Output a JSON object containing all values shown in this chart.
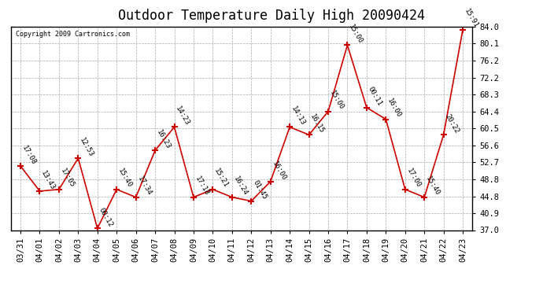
{
  "title": "Outdoor Temperature Daily High 20090424",
  "copyright": "Copyright 2009 Cartronics.com",
  "x_labels": [
    "03/31",
    "04/01",
    "04/02",
    "04/03",
    "04/04",
    "04/05",
    "04/06",
    "04/07",
    "04/08",
    "04/09",
    "04/10",
    "04/11",
    "04/12",
    "04/13",
    "04/14",
    "04/15",
    "04/16",
    "04/17",
    "04/18",
    "04/19",
    "04/20",
    "04/21",
    "04/22",
    "04/23"
  ],
  "y_values": [
    51.8,
    46.0,
    46.4,
    53.6,
    37.4,
    46.4,
    44.6,
    55.4,
    60.8,
    44.6,
    46.4,
    44.6,
    43.7,
    48.2,
    60.8,
    59.0,
    64.4,
    79.7,
    65.3,
    62.6,
    46.4,
    44.6,
    59.0,
    83.3
  ],
  "point_labels": [
    "17:08",
    "13:43",
    "17:05",
    "12:53",
    "00:12",
    "15:40",
    "17:34",
    "16:23",
    "14:23",
    "17:18",
    "15:21",
    "16:24",
    "01:45",
    "16:00",
    "14:13",
    "16:15",
    "15:00",
    "15:00",
    "00:11",
    "16:00",
    "17:00",
    "15:40",
    "20:22",
    "15:91"
  ],
  "line_color": "#cc0000",
  "marker_color": "#cc0000",
  "bg_color": "#ffffff",
  "grid_color": "#aaaaaa",
  "y_min": 37.0,
  "y_max": 84.0,
  "y_ticks": [
    37.0,
    40.9,
    44.8,
    48.8,
    52.7,
    56.6,
    60.5,
    64.4,
    68.3,
    72.2,
    76.2,
    80.1,
    84.0
  ],
  "title_fontsize": 12,
  "tick_fontsize": 7.5,
  "point_label_fontsize": 6.5
}
